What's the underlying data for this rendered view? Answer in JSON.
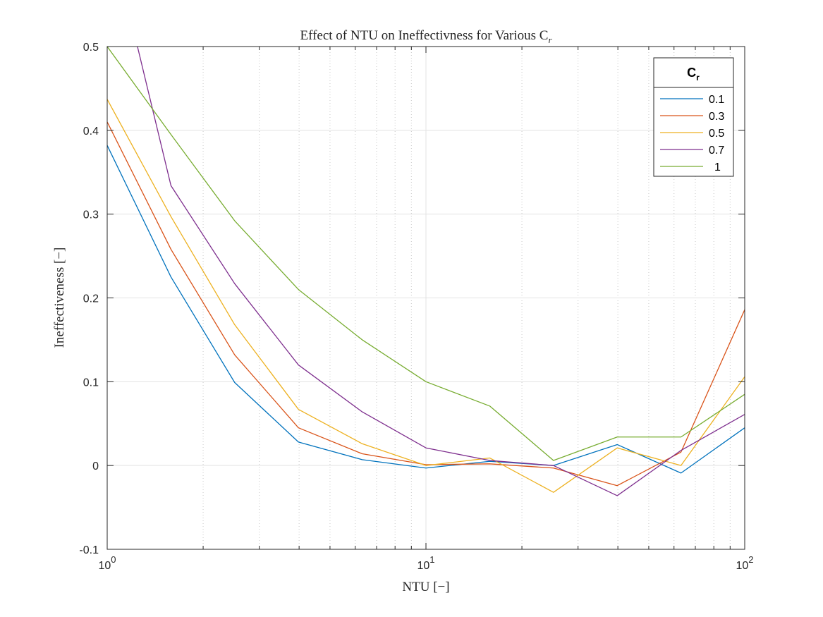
{
  "chart_data": {
    "type": "line",
    "title_main": "Effect of NTU on Ineffectivness for Various C",
    "title_sub": "r",
    "xlabel": "NTU [−]",
    "ylabel": "Ineffectiveness [−]",
    "x_scale": "log",
    "xlim": [
      1,
      100
    ],
    "ylim": [
      -0.1,
      0.5
    ],
    "grid": true,
    "minor_grid_x": true,
    "x_ticks": [
      {
        "value": 1,
        "base": "10",
        "exp": "0"
      },
      {
        "value": 10,
        "base": "10",
        "exp": "1"
      },
      {
        "value": 100,
        "base": "10",
        "exp": "2"
      }
    ],
    "y_ticks": [
      {
        "value": -0.1,
        "label": "-0.1"
      },
      {
        "value": 0,
        "label": "0"
      },
      {
        "value": 0.1,
        "label": "0.1"
      },
      {
        "value": 0.2,
        "label": "0.2"
      },
      {
        "value": 0.3,
        "label": "0.3"
      },
      {
        "value": 0.4,
        "label": "0.4"
      },
      {
        "value": 0.5,
        "label": "0.5"
      }
    ],
    "x": [
      1,
      1.585,
      2.512,
      3.981,
      6.31,
      10,
      15.85,
      25.12,
      39.81,
      63.1,
      100
    ],
    "series": [
      {
        "name": "0.1",
        "color": "#0072BD",
        "values": [
          0.382,
          0.225,
          0.099,
          0.028,
          0.007,
          -0.003,
          0.005,
          0.0,
          0.025,
          -0.009,
          0.045
        ]
      },
      {
        "name": "0.3",
        "color": "#D95319",
        "values": [
          0.41,
          0.258,
          0.132,
          0.045,
          0.014,
          0.001,
          0.002,
          -0.003,
          -0.024,
          0.016,
          0.186
        ]
      },
      {
        "name": "0.5",
        "color": "#EDB120",
        "values": [
          0.437,
          0.297,
          0.168,
          0.067,
          0.026,
          0.0,
          0.009,
          -0.032,
          0.021,
          0.0,
          0.106
        ]
      },
      {
        "name": "0.7",
        "color": "#7E2F8E",
        "values": [
          0.65,
          0.334,
          0.217,
          0.12,
          0.064,
          0.021,
          0.006,
          0.0,
          -0.036,
          0.018,
          0.061
        ]
      },
      {
        "name": "1",
        "color": "#77AC30",
        "values": [
          0.5,
          0.395,
          0.292,
          0.21,
          0.15,
          0.1,
          0.071,
          0.006,
          0.034,
          0.034,
          0.085
        ]
      }
    ],
    "legend": {
      "title_main": "C",
      "title_sub": "r",
      "placement": "top-right"
    }
  }
}
